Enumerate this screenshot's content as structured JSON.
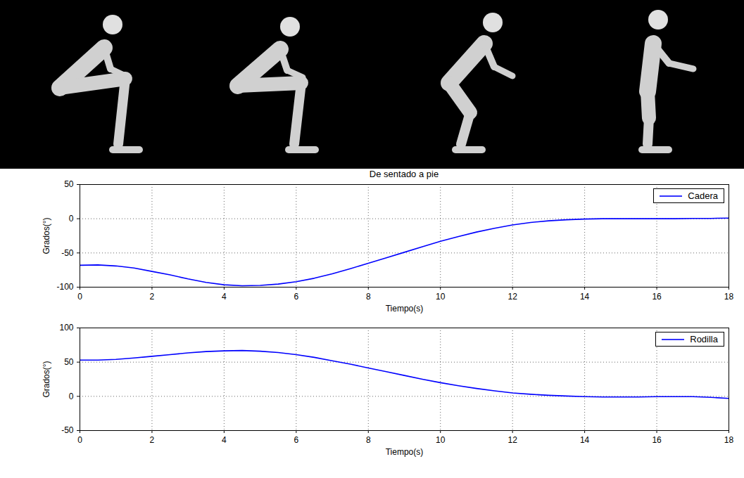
{
  "chart_data": [
    {
      "type": "line",
      "title": "De sentado a pie",
      "xlabel": "Tiempo(s)",
      "ylabel": "Grados(°)",
      "x": [
        0,
        0.5,
        1,
        1.5,
        2,
        2.5,
        3,
        3.5,
        4,
        4.5,
        5,
        5.5,
        6,
        6.5,
        7,
        7.5,
        8,
        8.5,
        9,
        9.5,
        10,
        10.5,
        11,
        11.5,
        12,
        12.5,
        13,
        13.5,
        14,
        14.5,
        15,
        15.5,
        16,
        16.5,
        17,
        17.5,
        18
      ],
      "series": [
        {
          "name": "Cadera",
          "color": "#0000ff",
          "values": [
            -68,
            -67.5,
            -69,
            -72,
            -77,
            -82,
            -88,
            -93,
            -96.5,
            -98,
            -97.5,
            -95.5,
            -92,
            -87,
            -80.5,
            -73,
            -65,
            -57,
            -49,
            -41,
            -33,
            -26,
            -19.5,
            -14,
            -9,
            -5.5,
            -3,
            -1.5,
            -0.5,
            0,
            0,
            0,
            0,
            0,
            0.5,
            0.5,
            1
          ]
        }
      ],
      "xlim": [
        0,
        18
      ],
      "xticks": [
        0,
        2,
        4,
        6,
        8,
        10,
        12,
        14,
        16,
        18
      ],
      "ylim": [
        -100,
        50
      ],
      "yticks": [
        -100,
        -50,
        0,
        50
      ],
      "grid": true,
      "legend": "northeast"
    },
    {
      "type": "line",
      "xlabel": "Tiempo(s)",
      "ylabel": "Grados(°)",
      "x": [
        0,
        0.5,
        1,
        1.5,
        2,
        2.5,
        3,
        3.5,
        4,
        4.5,
        5,
        5.5,
        6,
        6.5,
        7,
        7.5,
        8,
        8.5,
        9,
        9.5,
        10,
        10.5,
        11,
        11.5,
        12,
        12.5,
        13,
        13.5,
        14,
        14.5,
        15,
        15.5,
        16,
        16.5,
        17,
        17.5,
        18
      ],
      "series": [
        {
          "name": "Rodilla",
          "color": "#0000ff",
          "values": [
            53,
            53,
            54,
            56,
            58.5,
            61,
            63.5,
            65.5,
            66.5,
            67,
            66,
            64,
            61,
            57,
            52,
            47,
            41.5,
            36,
            30.5,
            25,
            20,
            15.5,
            11.5,
            8,
            5,
            3,
            1.5,
            0.5,
            -0.5,
            -1,
            -1,
            -1,
            -0.5,
            -0.5,
            -0.5,
            -1.5,
            -3
          ]
        }
      ],
      "xlim": [
        0,
        18
      ],
      "xticks": [
        0,
        2,
        4,
        6,
        8,
        10,
        12,
        14,
        16,
        18
      ],
      "ylim": [
        -50,
        100
      ],
      "yticks": [
        -50,
        0,
        50,
        100
      ],
      "grid": true,
      "legend": "northeast"
    }
  ]
}
